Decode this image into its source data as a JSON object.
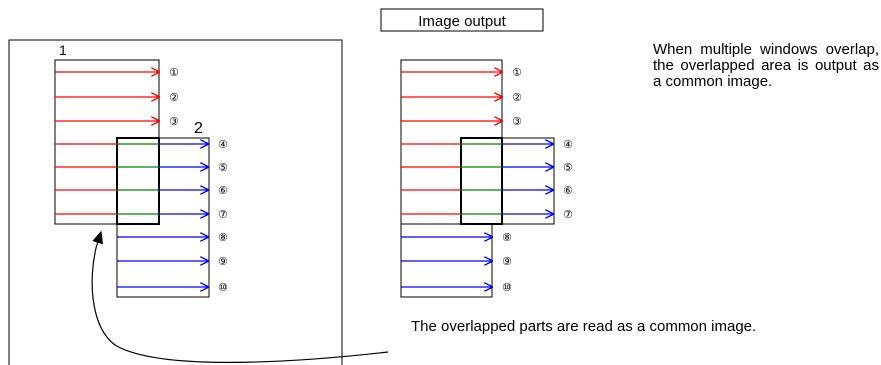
{
  "output_label": "Image output",
  "window_labels": {
    "w1": "1",
    "w2": "2"
  },
  "line_numbers": [
    "①",
    "②",
    "③",
    "④",
    "⑤",
    "⑥",
    "⑦",
    "⑧",
    "⑨",
    "⑩"
  ],
  "note_right": "When multiple windows overlap, the overlapped area is output as a common image.",
  "note_bottom": "The overlapped parts are read as a common image.",
  "colors": {
    "window1": "#ff0000",
    "window2": "#0000ff",
    "overlap": "#008000",
    "frame": "#000000"
  }
}
